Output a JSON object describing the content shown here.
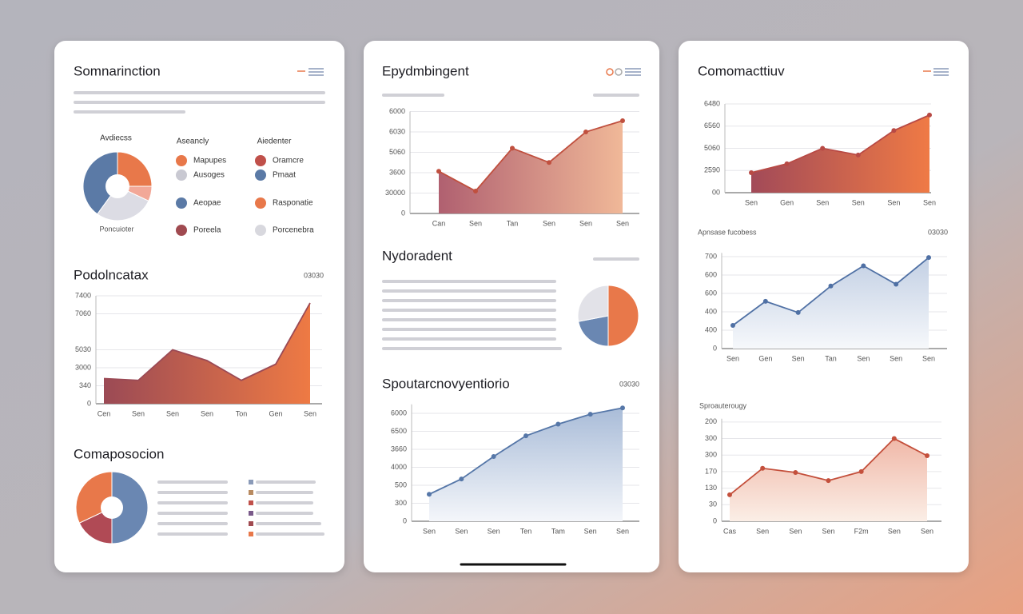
{
  "panels": [
    {
      "title": "Somnarinction"
    },
    {
      "title": "Epydmbingent"
    },
    {
      "title": "Comomacttiuv"
    }
  ],
  "legend": {
    "headers": [
      "Aseancly",
      "Aiedenter"
    ],
    "items": [
      {
        "label": "Mapupes",
        "color": "#e8784a"
      },
      {
        "label": "Ausoges",
        "color": "#c9c9d2"
      },
      {
        "label": "Aeopae",
        "color": "#5b7aa6"
      },
      {
        "label": "Poreela",
        "color": "#a04a50"
      },
      {
        "label": "Oramcre",
        "color": "#c0504a"
      },
      {
        "label": "Pmaat",
        "color": "#5b7aa6"
      },
      {
        "label": "Rasponatie",
        "color": "#e8784a"
      },
      {
        "label": "Porcenebra",
        "color": "#d8d8de"
      }
    ]
  },
  "chart_data": [
    {
      "type": "pie",
      "subtitle": "Avdiecss",
      "caption": "Poncuioter",
      "values": [
        25,
        7,
        28,
        40
      ],
      "colors": [
        "#e8784a",
        "#f2a898",
        "#dcdce4",
        "#5b7aa6"
      ]
    },
    {
      "type": "area",
      "title": "Podolncatax",
      "annotation": "03030",
      "categories": [
        "Cen",
        "Sen",
        "Sen",
        "Sen",
        "Ton",
        "Gen",
        "Sen"
      ],
      "values": [
        1.4,
        1.3,
        3.0,
        2.4,
        1.3,
        2.2,
        5.6
      ],
      "ylim": [
        0,
        6
      ],
      "yticks": [
        0,
        {
          "value": 1,
          "label": "340"
        },
        {
          "value": 2,
          "label": "3000"
        },
        {
          "value": 3,
          "label": "5030"
        },
        {
          "value": 5,
          "label": "7060"
        },
        {
          "value": 6,
          "label": "7400"
        }
      ],
      "color": "#9b4a55",
      "fill": [
        "#9b4a55",
        "#ee7a44"
      ],
      "gradient": "horizontal",
      "markers": false,
      "grid": true
    },
    {
      "type": "pie",
      "title": "Comaposocion",
      "values": [
        50,
        18,
        32
      ],
      "colors": [
        "#6a87b2",
        "#b04a55",
        "#e8784a"
      ]
    },
    {
      "type": "area",
      "categories": [
        "Can",
        "Sen",
        "Tan",
        "Sen",
        "Sen",
        "Sen"
      ],
      "values": [
        2.07,
        1.1,
        3.2,
        2.5,
        4.0,
        4.55
      ],
      "ylim": [
        0,
        5
      ],
      "yticks": [
        {
          "value": 0,
          "label": "0"
        },
        {
          "value": 1,
          "label": "30000"
        },
        {
          "value": 2,
          "label": "3600"
        },
        {
          "value": 3,
          "label": "5060"
        },
        {
          "value": 4,
          "label": "6030"
        },
        {
          "value": 5,
          "label": "6000"
        }
      ],
      "color": "#c0503f",
      "fill": [
        "#b06070",
        "#f0b898"
      ],
      "gradient": "horizontal",
      "markers": true,
      "grid": true
    },
    {
      "type": "pie",
      "title": "Nydoradent",
      "values": [
        50,
        22,
        28
      ],
      "colors": [
        "#e8784a",
        "#6a87b2",
        "#e2e2e8"
      ]
    },
    {
      "type": "area",
      "title": "Spoutarcnovyentiorio",
      "annotation": "03030",
      "categories": [
        "Sen",
        "Sen",
        "Sen",
        "Ten",
        "Tam",
        "Sen",
        "Sen"
      ],
      "values": [
        1.5,
        2.35,
        3.6,
        4.75,
        5.4,
        5.95,
        6.3
      ],
      "ylim": [
        0,
        6.5
      ],
      "yticks": [
        0,
        {
          "value": 1,
          "label": "300"
        },
        {
          "value": 2,
          "label": "500"
        },
        {
          "value": 3,
          "label": "4000"
        },
        {
          "value": 4,
          "label": "3660"
        },
        {
          "value": 5,
          "label": "6500"
        },
        {
          "value": 6,
          "label": "6000"
        }
      ],
      "color": "#5677a8",
      "fill": [
        "#a9bcd8",
        "#f4f6fa"
      ],
      "gradient": "vertical",
      "markers": true,
      "grid": true
    },
    {
      "type": "area",
      "categories": [
        "Sen",
        "Gen",
        "Sen",
        "Sen",
        "Sen",
        "Sen"
      ],
      "values": [
        0.9,
        1.3,
        2.0,
        1.7,
        2.8,
        3.5
      ],
      "ylim": [
        0,
        4
      ],
      "yticks": [
        {
          "value": 0,
          "label": "00"
        },
        {
          "value": 1,
          "label": "2590"
        },
        {
          "value": 2,
          "label": "5060"
        },
        {
          "value": 3,
          "label": "6560"
        },
        {
          "value": 4,
          "label": "6480"
        }
      ],
      "color": "#b84a45",
      "fill": [
        "#a24a58",
        "#ef7a45"
      ],
      "gradient": "horizontal",
      "markers": true,
      "grid": true
    },
    {
      "type": "area",
      "title": "Apnsase fucobess",
      "annotation": "03030",
      "categories": [
        "Sen",
        "Gen",
        "Sen",
        "Tan",
        "Sen",
        "Sen",
        "Sen"
      ],
      "values": [
        1.26,
        2.57,
        1.96,
        3.4,
        4.5,
        3.5,
        4.95
      ],
      "ylim": [
        0,
        5.2
      ],
      "yticks": [
        0,
        {
          "value": 1,
          "label": "400"
        },
        {
          "value": 2,
          "label": "400"
        },
        {
          "value": 3,
          "label": "600"
        },
        {
          "value": 4,
          "label": "600"
        },
        {
          "value": 5,
          "label": "700"
        }
      ],
      "color": "#4f70a4",
      "fill": [
        "#c3d0e4",
        "#f6f8fb"
      ],
      "gradient": "vertical",
      "markers": true,
      "grid": true
    },
    {
      "type": "area",
      "title": "Sproauterougy",
      "categories": [
        "Cas",
        "Sen",
        "Sen",
        "Sen",
        "F2m",
        "Sen",
        "Sen"
      ],
      "values": [
        1.6,
        3.2,
        2.95,
        2.46,
        3.0,
        5.0,
        3.96
      ],
      "ylim": [
        0,
        6.2
      ],
      "yticks": [
        0,
        {
          "value": 1,
          "label": "30"
        },
        {
          "value": 2,
          "label": "130"
        },
        {
          "value": 3,
          "label": "170"
        },
        {
          "value": 4,
          "label": "300"
        },
        {
          "value": 5,
          "label": "300"
        },
        {
          "value": 6,
          "label": "200"
        }
      ],
      "color": "#c4503c",
      "fill": [
        "#f0b8a8",
        "#fbeee6"
      ],
      "gradient": "vertical",
      "markers": true,
      "grid": true
    }
  ]
}
